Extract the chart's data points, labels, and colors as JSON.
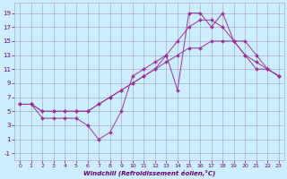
{
  "xlabel": "Windchill (Refroidissement éolien,°C)",
  "background_color": "#cceeff",
  "grid_color": "#aaaacc",
  "line_color": "#993399",
  "xlim": [
    -0.5,
    23.5
  ],
  "ylim": [
    -2,
    20.5
  ],
  "xticks": [
    0,
    1,
    2,
    3,
    4,
    5,
    6,
    7,
    8,
    9,
    10,
    11,
    12,
    13,
    14,
    15,
    16,
    17,
    18,
    19,
    20,
    21,
    22,
    23
  ],
  "yticks": [
    -1,
    1,
    3,
    5,
    7,
    9,
    11,
    13,
    15,
    17,
    19
  ],
  "line1_x": [
    0,
    1,
    2,
    3,
    4,
    5,
    6,
    7,
    8,
    9,
    10,
    11,
    12,
    13,
    14,
    15,
    16,
    17,
    18,
    19,
    20,
    21,
    22,
    23
  ],
  "line1_y": [
    6,
    6,
    4,
    4,
    4,
    4,
    3,
    1,
    2,
    5,
    10,
    11,
    12,
    13,
    8,
    19,
    19,
    17,
    19,
    15,
    13,
    11,
    11,
    10
  ],
  "line2_x": [
    0,
    1,
    2,
    3,
    4,
    5,
    6,
    7,
    8,
    9,
    10,
    11,
    12,
    13,
    14,
    15,
    16,
    17,
    18,
    19,
    20,
    21,
    22,
    23
  ],
  "line2_y": [
    6,
    6,
    5,
    5,
    5,
    5,
    5,
    6,
    7,
    8,
    9,
    10,
    11,
    12,
    13,
    14,
    14,
    15,
    15,
    15,
    13,
    12,
    11,
    10
  ],
  "line3_x": [
    0,
    1,
    2,
    3,
    4,
    5,
    6,
    7,
    8,
    9,
    10,
    11,
    12,
    13,
    14,
    15,
    16,
    17,
    18,
    19,
    20,
    21,
    22,
    23
  ],
  "line3_y": [
    6,
    6,
    5,
    5,
    5,
    5,
    5,
    6,
    7,
    8,
    9,
    10,
    11,
    13,
    15,
    17,
    18,
    18,
    17,
    15,
    15,
    13,
    11,
    10
  ]
}
